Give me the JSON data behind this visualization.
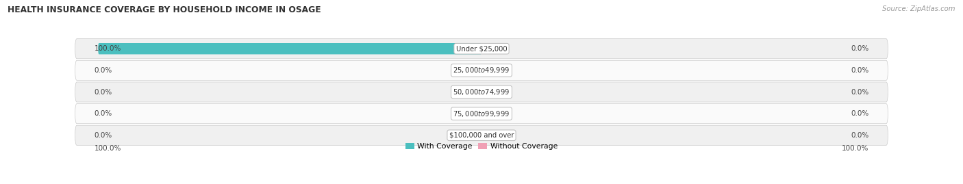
{
  "title": "HEALTH INSURANCE COVERAGE BY HOUSEHOLD INCOME IN OSAGE",
  "source": "Source: ZipAtlas.com",
  "categories": [
    "Under $25,000",
    "$25,000 to $49,999",
    "$50,000 to $74,999",
    "$75,000 to $99,999",
    "$100,000 and over"
  ],
  "with_coverage": [
    100.0,
    0.0,
    0.0,
    0.0,
    0.0
  ],
  "without_coverage": [
    0.0,
    0.0,
    0.0,
    0.0,
    0.0
  ],
  "color_with": "#4bbfbf",
  "color_without": "#f0a0b5",
  "row_bg_odd": "#f0f0f0",
  "row_bg_even": "#fafafa",
  "label_left_with": [
    100.0,
    0.0,
    0.0,
    0.0,
    0.0
  ],
  "label_right_without": [
    0.0,
    0.0,
    0.0,
    0.0,
    0.0
  ],
  "bottom_left_label": "100.0%",
  "bottom_right_label": "100.0%",
  "legend_with": "With Coverage",
  "legend_without": "Without Coverage",
  "figsize": [
    14.06,
    2.69
  ],
  "dpi": 100
}
